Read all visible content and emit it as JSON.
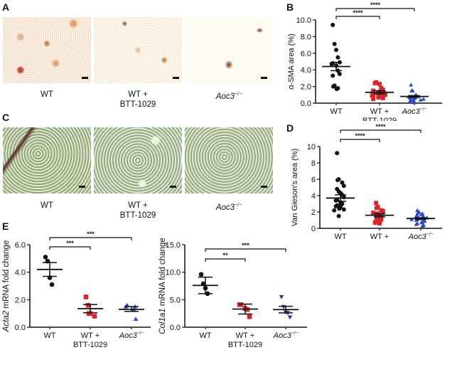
{
  "panels": {
    "A": {
      "letter": "A",
      "labels": [
        "WT",
        "WT +",
        "BTT-1029",
        "Aoc3"
      ],
      "sup": "−/−"
    },
    "B": {
      "letter": "B"
    },
    "C": {
      "letter": "C",
      "labels": [
        "WT",
        "WT +",
        "BTT-1029",
        "Aoc3"
      ],
      "sup": "−/−"
    },
    "D": {
      "letter": "D"
    },
    "E": {
      "letter": "E"
    }
  },
  "colors": {
    "wt": "#111111",
    "btt": "#d9262b",
    "aoc3": "#2f47c9",
    "aoc3_dark": "#2a3a9a"
  },
  "chart_data": [
    {
      "id": "B",
      "type": "scatter",
      "title": "",
      "ylabel": "α-SMA area (%)",
      "ylim": [
        0,
        10
      ],
      "yticks": [
        "0.0",
        "2.0",
        "4.0",
        "6.0",
        "8.0",
        "10.0"
      ],
      "categories": [
        "WT",
        "WT + BTT-1029",
        "Aoc3−/−"
      ],
      "series": [
        {
          "name": "WT",
          "marker": "circle",
          "values": [
            9.4,
            7.1,
            6.4,
            5.5,
            4.9,
            4.8,
            4.7,
            4.5,
            3.9,
            3.5,
            3.3,
            2.1,
            2.0,
            1.8,
            1.7
          ],
          "mean": 4.4,
          "sem": [
            3.9,
            4.9
          ]
        },
        {
          "name": "WT + BTT-1029",
          "marker": "square",
          "values": [
            2.5,
            2.4,
            2.3,
            1.8,
            1.6,
            1.5,
            1.4,
            1.3,
            1.2,
            1.1,
            1.0,
            0.9,
            0.8,
            0.7,
            0.6,
            0.5,
            0.9,
            1.0,
            1.2
          ],
          "mean": 1.3,
          "sem": [
            1.1,
            1.5
          ]
        },
        {
          "name": "Aoc3−/−",
          "marker": "triangle",
          "values": [
            2.2,
            1.5,
            1.5,
            1.0,
            0.9,
            0.8,
            0.7,
            0.6,
            0.5,
            0.4,
            0.3,
            0.2,
            0.1,
            0.6,
            0.5,
            0.3,
            0.7,
            0.8
          ],
          "mean": 0.8,
          "sem": [
            0.7,
            0.9
          ]
        }
      ],
      "significance": [
        {
          "pair": [
            "WT",
            "WT + BTT-1029"
          ],
          "label": "****"
        },
        {
          "pair": [
            "WT",
            "Aoc3−/−"
          ],
          "label": "****"
        }
      ]
    },
    {
      "id": "D",
      "type": "scatter",
      "title": "",
      "ylabel": "Van Gieson's area (%)",
      "ylim": [
        0,
        10
      ],
      "yticks": [
        "0",
        "2",
        "4",
        "6",
        "8",
        "10"
      ],
      "categories": [
        "WT",
        "WT + BTT-1029",
        "Aoc3−/−"
      ],
      "series": [
        {
          "name": "WT",
          "marker": "circle",
          "values": [
            9.2,
            6.0,
            5.9,
            5.6,
            5.2,
            4.8,
            4.5,
            4.3,
            4.1,
            3.8,
            3.5,
            3.4,
            3.2,
            3.0,
            2.9,
            2.8,
            2.7,
            2.6,
            2.4,
            2.3,
            2.2,
            1.5
          ],
          "mean": 3.7,
          "sem": [
            3.3,
            4.1
          ]
        },
        {
          "name": "WT + BTT-1029",
          "marker": "square",
          "values": [
            3.1,
            2.6,
            2.5,
            2.2,
            2.1,
            1.9,
            1.8,
            1.7,
            1.6,
            1.5,
            1.4,
            1.3,
            1.2,
            1.1,
            0.9,
            0.8,
            0.7,
            0.6
          ],
          "mean": 1.6,
          "sem": [
            1.4,
            1.8
          ]
        },
        {
          "name": "Aoc3−/−",
          "marker": "triangle",
          "values": [
            2.2,
            2.0,
            1.9,
            1.8,
            1.7,
            1.6,
            1.5,
            1.4,
            1.3,
            1.2,
            1.1,
            1.0,
            0.9,
            0.8,
            0.7,
            0.6,
            0.5,
            0.4,
            0.3,
            1.3,
            1.1,
            0.9
          ],
          "mean": 1.2,
          "sem": [
            1.1,
            1.3
          ]
        }
      ],
      "significance": [
        {
          "pair": [
            "WT",
            "WT + BTT-1029"
          ],
          "label": "****"
        },
        {
          "pair": [
            "WT",
            "Aoc3−/−"
          ],
          "label": "****"
        }
      ]
    },
    {
      "id": "E-left",
      "type": "scatter",
      "title": "",
      "ylabel": "Acta2 mRNA fold change",
      "ylim": [
        0,
        6
      ],
      "yticks": [
        "0.0",
        "2.0",
        "4.0",
        "6.0"
      ],
      "categories": [
        "WT",
        "WT + BTT-1029",
        "Aoc3−/−"
      ],
      "series": [
        {
          "name": "WT",
          "marker": "circle",
          "values": [
            5.1,
            4.8,
            3.6,
            3.1
          ],
          "mean": 4.2,
          "sem": [
            3.7,
            4.7
          ]
        },
        {
          "name": "WT + BTT-1029",
          "marker": "square",
          "values": [
            2.2,
            1.6,
            1.0,
            1.0,
            0.8
          ],
          "mean": 1.35,
          "sem": [
            1.05,
            1.65
          ]
        },
        {
          "name": "Aoc3−/−",
          "marker": "triangle",
          "values": [
            1.6,
            1.5,
            1.5,
            1.3,
            0.6
          ],
          "mean": 1.3,
          "sem": [
            1.15,
            1.5
          ]
        }
      ],
      "significance": [
        {
          "pair": [
            "WT",
            "WT + BTT-1029"
          ],
          "label": "***"
        },
        {
          "pair": [
            "WT",
            "Aoc3−/−"
          ],
          "label": "***"
        }
      ]
    },
    {
      "id": "E-right",
      "type": "scatter",
      "title": "",
      "ylabel": "Col1a1 mRNA fold change",
      "ylim": [
        0,
        15
      ],
      "yticks": [
        "0.0",
        "5.0",
        "10.0",
        "15.0"
      ],
      "categories": [
        "WT",
        "WT + BTT-1029",
        "Aoc3−/−"
      ],
      "series": [
        {
          "name": "WT",
          "marker": "circle",
          "values": [
            9.6,
            7.9,
            7.1,
            6.1
          ],
          "mean": 7.6,
          "sem": [
            6.1,
            9.1
          ]
        },
        {
          "name": "WT + BTT-1029",
          "marker": "square",
          "values": [
            4.1,
            4.1,
            3.4,
            3.2,
            1.9
          ],
          "mean": 3.3,
          "sem": [
            2.4,
            4.2
          ]
        },
        {
          "name": "Aoc3−/−",
          "marker": "inverted-triangle",
          "values": [
            5.5,
            3.7,
            2.7,
            2.6,
            1.8
          ],
          "mean": 3.2,
          "sem": [
            2.6,
            3.8
          ]
        }
      ],
      "significance": [
        {
          "pair": [
            "WT",
            "WT + BTT-1029"
          ],
          "label": "**"
        },
        {
          "pair": [
            "WT",
            "Aoc3−/−"
          ],
          "label": "***"
        }
      ]
    }
  ]
}
